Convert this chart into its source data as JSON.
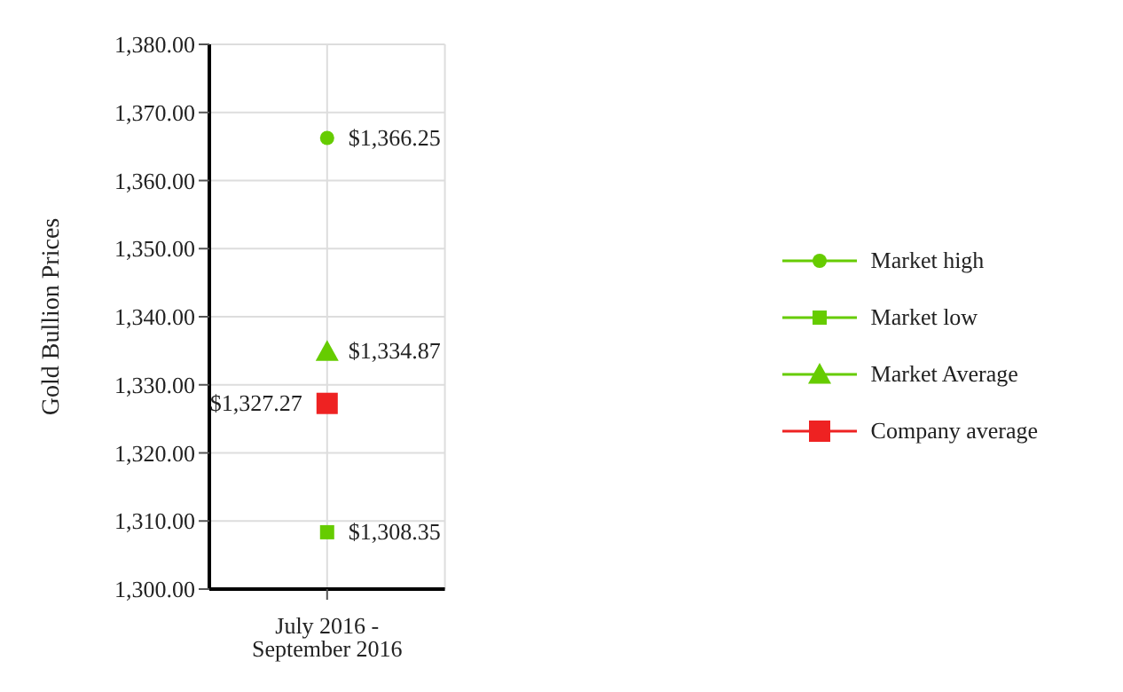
{
  "chart_data": {
    "type": "line",
    "ylabel": "Gold Bullion Prices",
    "categories": [
      "July 2016 - September 2016"
    ],
    "series": [
      {
        "name": "Market high",
        "color": "#66cc00",
        "marker": "circle",
        "values": [
          1366.25
        ],
        "value_labels": [
          "$1,366.25"
        ]
      },
      {
        "name": "Market low",
        "color": "#66cc00",
        "marker": "square",
        "values": [
          1308.35
        ],
        "value_labels": [
          "$1,308.35"
        ]
      },
      {
        "name": "Market Average",
        "color": "#66cc00",
        "marker": "triangle",
        "values": [
          1334.87
        ],
        "value_labels": [
          "$1,334.87"
        ]
      },
      {
        "name": "Company average",
        "color": "#ee2222",
        "marker": "square",
        "values": [
          1327.27
        ],
        "value_labels": [
          "$1,327.27"
        ]
      }
    ],
    "ylim": [
      1300,
      1380
    ],
    "yticks": [
      {
        "value": 1300,
        "label": "1,300.00"
      },
      {
        "value": 1310,
        "label": "1,310.00"
      },
      {
        "value": 1320,
        "label": "1,320.00"
      },
      {
        "value": 1330,
        "label": "1,330.00"
      },
      {
        "value": 1340,
        "label": "1,340.00"
      },
      {
        "value": 1350,
        "label": "1,350.00"
      },
      {
        "value": 1360,
        "label": "1,360.00"
      },
      {
        "value": 1370,
        "label": "1,370.00"
      },
      {
        "value": 1380,
        "label": "1,380.00"
      }
    ],
    "grid": true,
    "legend": "right"
  }
}
